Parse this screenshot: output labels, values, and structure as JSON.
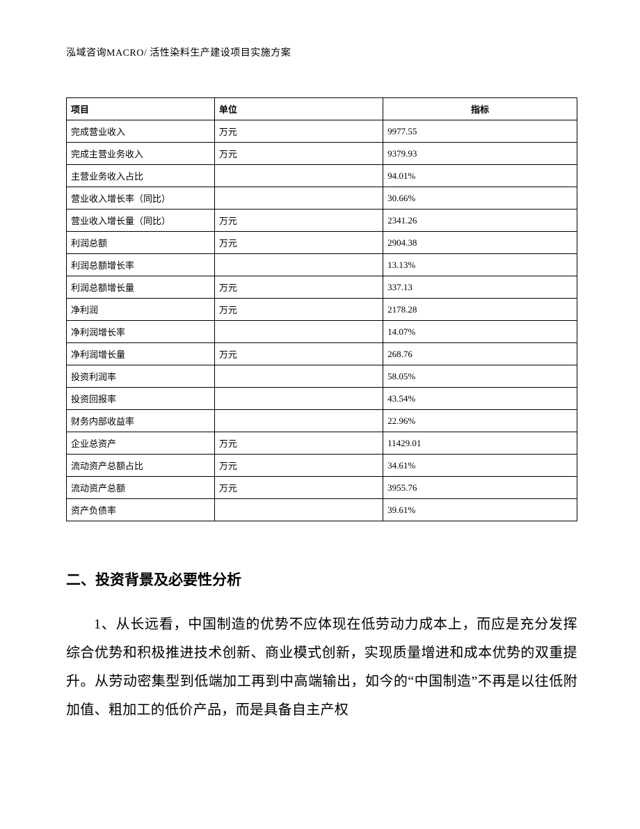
{
  "header": {
    "text": "泓域咨询MACRO/ 活性染料生产建设项目实施方案"
  },
  "table": {
    "columns": [
      {
        "key": "item",
        "label": "项目"
      },
      {
        "key": "unit",
        "label": "单位"
      },
      {
        "key": "indicator",
        "label": "指标"
      }
    ],
    "rows": [
      {
        "item": "完成营业收入",
        "unit": "万元",
        "indicator": "9977.55"
      },
      {
        "item": "完成主营业务收入",
        "unit": "万元",
        "indicator": "9379.93"
      },
      {
        "item": "主营业务收入占比",
        "unit": "",
        "indicator": "94.01%"
      },
      {
        "item": "营业收入增长率（同比）",
        "unit": "",
        "indicator": "30.66%"
      },
      {
        "item": "营业收入增长量（同比）",
        "unit": "万元",
        "indicator": "2341.26"
      },
      {
        "item": "利润总额",
        "unit": "万元",
        "indicator": "2904.38"
      },
      {
        "item": "利润总额增长率",
        "unit": "",
        "indicator": "13.13%"
      },
      {
        "item": "利润总额增长量",
        "unit": "万元",
        "indicator": "337.13"
      },
      {
        "item": "净利润",
        "unit": "万元",
        "indicator": "2178.28"
      },
      {
        "item": "净利润增长率",
        "unit": "",
        "indicator": "14.07%"
      },
      {
        "item": "净利润增长量",
        "unit": "万元",
        "indicator": "268.76"
      },
      {
        "item": "投资利润率",
        "unit": "",
        "indicator": "58.05%"
      },
      {
        "item": "投资回报率",
        "unit": "",
        "indicator": "43.54%"
      },
      {
        "item": "财务内部收益率",
        "unit": "",
        "indicator": "22.96%"
      },
      {
        "item": "企业总资产",
        "unit": "万元",
        "indicator": "11429.01"
      },
      {
        "item": "流动资产总额占比",
        "unit": "万元",
        "indicator": "34.61%"
      },
      {
        "item": "流动资产总额",
        "unit": "万元",
        "indicator": "3955.76"
      },
      {
        "item": "资产负债率",
        "unit": "",
        "indicator": "39.61%"
      }
    ]
  },
  "section": {
    "heading": "二、投资背景及必要性分析",
    "paragraph1": "1、从长远看，中国制造的优势不应体现在低劳动力成本上，而应是充分发挥综合优势和积极推进技术创新、商业模式创新，实现质量增进和成本优势的双重提升。从劳动密集型到低端加工再到中高端输出，如今的“中国制造”不再是以往低附加值、粗加工的低价产品，而是具备自主产权"
  }
}
